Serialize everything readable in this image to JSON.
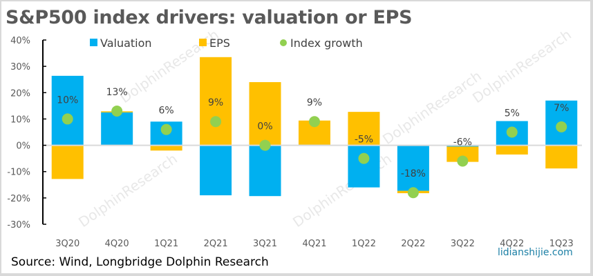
{
  "title": "S&P500 index drivers:  valuation or EPS",
  "source": "Source: Wind, Longbridge Dolphin Research",
  "site_watermark": "lidianshijie.com",
  "watermark_text": "DolphinResearch",
  "colors": {
    "valuation": "#00B0F0",
    "eps": "#FFC000",
    "index_growth": "#92D050",
    "zero_line": "#D9D9D9",
    "axis": "#000000"
  },
  "chart_data": {
    "type": "bar",
    "stacked": true,
    "title": "S&P500 index drivers:  valuation or EPS",
    "xlabel": "",
    "ylabel": "",
    "ylim": [
      -30,
      40
    ],
    "yticks": [
      40,
      30,
      20,
      10,
      0,
      -10,
      -20,
      -30
    ],
    "ytick_labels": [
      "40%",
      "30%",
      "20%",
      "10%",
      "0%",
      "-10%",
      "-20%",
      "-30%"
    ],
    "categories": [
      "3Q20",
      "4Q20",
      "1Q21",
      "2Q21",
      "3Q21",
      "4Q21",
      "1Q22",
      "2Q22",
      "3Q22",
      "4Q22",
      "1Q23"
    ],
    "series": [
      {
        "name": "Valuation",
        "kind": "bar",
        "values": [
          26.4,
          12.5,
          9.0,
          -19.0,
          -19.3,
          0.2,
          -16.0,
          -17.3,
          -0.5,
          9.2,
          17.0
        ]
      },
      {
        "name": "EPS",
        "kind": "bar",
        "values": [
          -12.8,
          0.4,
          -2.0,
          33.5,
          24.0,
          9.2,
          12.7,
          -0.9,
          -5.8,
          -3.5,
          -8.8
        ]
      },
      {
        "name": "Index growth",
        "kind": "scatter",
        "values": [
          10,
          13,
          6,
          9,
          0,
          9,
          -5,
          -18,
          -6,
          5,
          7
        ]
      }
    ],
    "data_labels": [
      "10%",
      "13%",
      "6%",
      "9%",
      "0%",
      "9%",
      "-5%",
      "-18%",
      "-6%",
      "5%",
      "7%"
    ],
    "legend": {
      "position": "top",
      "entries": [
        "Valuation",
        "EPS",
        "Index growth"
      ]
    },
    "grid": false
  }
}
